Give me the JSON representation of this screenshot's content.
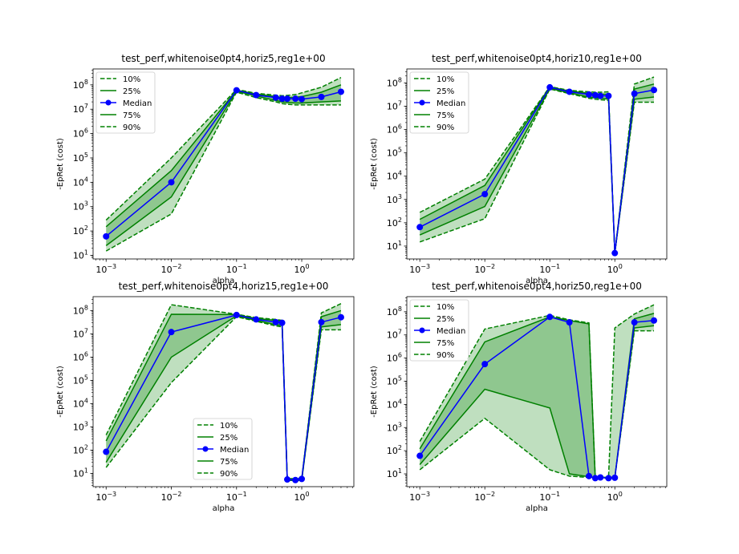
{
  "colors": {
    "band": "#008000",
    "median": "#0000ff",
    "band_outer_alpha": 0.25,
    "band_inner_alpha": 0.25
  },
  "chart_data": [
    {
      "type": "line",
      "title": "test_perf,whitenoise0pt4,horiz5,reg1e+00",
      "xlabel": "alpha",
      "ylabel": "-EpRet (cost)",
      "xscale": "log",
      "yscale": "log",
      "xlim": [
        0.000631,
        6.3
      ],
      "ylim": [
        7.1,
        450000000
      ],
      "x_ticks": [
        0.001,
        0.01,
        0.1,
        1
      ],
      "x_tick_labels": [
        "10^{-3}",
        "10^{-2}",
        "10^{-1}",
        "10^{0}"
      ],
      "y_ticks": [
        10,
        100,
        1000,
        10000,
        100000,
        1000000,
        10000000,
        100000000
      ],
      "y_tick_labels": [
        "10^{1}",
        "10^{2}",
        "10^{3}",
        "10^{4}",
        "10^{5}",
        "10^{6}",
        "10^{7}",
        "10^{8}"
      ],
      "grid": false,
      "legend_position": "upper-left",
      "legend": [
        "10%",
        "25%",
        "Median",
        "75%",
        "90%"
      ],
      "x": [
        0.001,
        0.01,
        0.1,
        0.2,
        0.4,
        0.5,
        0.6,
        0.8,
        1.0,
        2.0,
        4.0
      ],
      "series": [
        {
          "name": "10%",
          "style": "dashed",
          "values": [
            15,
            500,
            50000000,
            30000000,
            20000000,
            17000000,
            16000000,
            15000000,
            15000000,
            15000000,
            15000000
          ]
        },
        {
          "name": "25%",
          "style": "solid",
          "values": [
            25,
            2500,
            55000000,
            35000000,
            23000000,
            20000000,
            19000000,
            18000000,
            18000000,
            20000000,
            22000000
          ]
        },
        {
          "name": "Median",
          "style": "marker",
          "values": [
            60,
            10000,
            60000000,
            38000000,
            30000000,
            27000000,
            27000000,
            27000000,
            26000000,
            32000000,
            52000000
          ]
        },
        {
          "name": "75%",
          "style": "solid",
          "values": [
            150,
            30000,
            60000000,
            42000000,
            33000000,
            30000000,
            30000000,
            31000000,
            33000000,
            50000000,
            100000000
          ]
        },
        {
          "name": "90%",
          "style": "dashed",
          "values": [
            280,
            100000,
            65000000,
            45000000,
            38000000,
            36000000,
            37000000,
            40000000,
            47000000,
            80000000,
            200000000
          ]
        }
      ]
    },
    {
      "type": "line",
      "title": "test_perf,whitenoise0pt4,horiz10,reg1e+00",
      "xlabel": "alpha",
      "ylabel": "-EpRet (cost)",
      "xscale": "log",
      "yscale": "log",
      "xlim": [
        0.000631,
        6.3
      ],
      "ylim": [
        2.8,
        400000000
      ],
      "x_ticks": [
        0.001,
        0.01,
        0.1,
        1
      ],
      "x_tick_labels": [
        "10^{-3}",
        "10^{-2}",
        "10^{-1}",
        "10^{0}"
      ],
      "y_ticks": [
        10,
        100,
        1000,
        10000,
        100000,
        1000000,
        10000000,
        100000000
      ],
      "y_tick_labels": [
        "10^{1}",
        "10^{2}",
        "10^{3}",
        "10^{4}",
        "10^{5}",
        "10^{6}",
        "10^{7}",
        "10^{8}"
      ],
      "grid": false,
      "legend_position": "upper-left",
      "legend": [
        "10%",
        "25%",
        "Median",
        "75%",
        "90%"
      ],
      "x": [
        0.001,
        0.01,
        0.1,
        0.2,
        0.4,
        0.5,
        0.6,
        0.8,
        1.0,
        2.0,
        4.0
      ],
      "series": [
        {
          "name": "10%",
          "style": "dashed",
          "values": [
            15,
            150,
            55000000,
            35000000,
            22000000,
            20000000,
            19000000,
            18000000,
            5,
            15000000,
            15000000
          ]
        },
        {
          "name": "25%",
          "style": "solid",
          "values": [
            30,
            500,
            58000000,
            38000000,
            25000000,
            23000000,
            22000000,
            21000000,
            5,
            20000000,
            25000000
          ]
        },
        {
          "name": "Median",
          "style": "marker",
          "values": [
            65,
            1700,
            65000000,
            42000000,
            32000000,
            30000000,
            28000000,
            28000000,
            5,
            35000000,
            50000000
          ]
        },
        {
          "name": "75%",
          "style": "solid",
          "values": [
            140,
            4000,
            68000000,
            45000000,
            36000000,
            34000000,
            33000000,
            33000000,
            5,
            55000000,
            90000000
          ]
        },
        {
          "name": "90%",
          "style": "dashed",
          "values": [
            280,
            7500,
            70000000,
            48000000,
            42000000,
            40000000,
            40000000,
            42000000,
            5,
            90000000,
            180000000
          ]
        }
      ]
    },
    {
      "type": "line",
      "title": "test_perf,whitenoise0pt4,horiz15,reg1e+00",
      "xlabel": "alpha",
      "ylabel": "-EpRet (cost)",
      "xscale": "log",
      "yscale": "log",
      "xlim": [
        0.000631,
        6.3
      ],
      "ylim": [
        2.7,
        400000000
      ],
      "x_ticks": [
        0.001,
        0.01,
        0.1,
        1
      ],
      "x_tick_labels": [
        "10^{-3}",
        "10^{-2}",
        "10^{-1}",
        "10^{0}"
      ],
      "y_ticks": [
        10,
        100,
        1000,
        10000,
        100000,
        1000000,
        10000000,
        100000000
      ],
      "y_tick_labels": [
        "10^{1}",
        "10^{2}",
        "10^{3}",
        "10^{4}",
        "10^{5}",
        "10^{6}",
        "10^{7}",
        "10^{8}"
      ],
      "grid": false,
      "legend_position": "lower-center",
      "legend": [
        "10%",
        "25%",
        "Median",
        "75%",
        "90%"
      ],
      "x": [
        0.001,
        0.01,
        0.1,
        0.2,
        0.4,
        0.5,
        0.6,
        0.8,
        1.0,
        2.0,
        4.0
      ],
      "series": [
        {
          "name": "10%",
          "style": "dashed",
          "values": [
            18,
            80000,
            55000000,
            35000000,
            22000000,
            20000000,
            5,
            5,
            5,
            15000000,
            15000000
          ]
        },
        {
          "name": "25%",
          "style": "solid",
          "values": [
            30,
            1000000,
            60000000,
            38000000,
            25000000,
            23000000,
            5,
            5,
            5,
            20000000,
            25000000
          ]
        },
        {
          "name": "Median",
          "style": "marker",
          "values": [
            85,
            12000000,
            65000000,
            42000000,
            32000000,
            30000000,
            5.5,
            5.2,
            5.8,
            32000000,
            52000000
          ]
        },
        {
          "name": "75%",
          "style": "solid",
          "values": [
            250,
            70000000,
            68000000,
            46000000,
            38000000,
            34000000,
            6,
            5.5,
            6,
            55000000,
            100000000
          ]
        },
        {
          "name": "90%",
          "style": "dashed",
          "values": [
            450,
            180000000,
            70000000,
            50000000,
            42000000,
            38000000,
            6,
            6,
            6,
            80000000,
            200000000
          ]
        }
      ]
    },
    {
      "type": "line",
      "title": "test_perf,whitenoise0pt4,horiz50,reg1e+00",
      "xlabel": "alpha",
      "ylabel": "-EpRet (cost)",
      "xscale": "log",
      "yscale": "log",
      "xlim": [
        0.000631,
        6.3
      ],
      "ylim": [
        2.8,
        450000000
      ],
      "x_ticks": [
        0.001,
        0.01,
        0.1,
        1
      ],
      "x_tick_labels": [
        "10^{-3}",
        "10^{-2}",
        "10^{-1}",
        "10^{0}"
      ],
      "y_ticks": [
        10,
        100,
        1000,
        10000,
        100000,
        1000000,
        10000000,
        100000000
      ],
      "y_tick_labels": [
        "10^{1}",
        "10^{2}",
        "10^{3}",
        "10^{4}",
        "10^{5}",
        "10^{6}",
        "10^{7}",
        "10^{8}"
      ],
      "grid": false,
      "legend_position": "upper-left",
      "legend": [
        "10%",
        "25%",
        "Median",
        "75%",
        "90%"
      ],
      "x": [
        0.001,
        0.01,
        0.1,
        0.2,
        0.4,
        0.5,
        0.6,
        0.8,
        1.0,
        2.0,
        4.0
      ],
      "series": [
        {
          "name": "10%",
          "style": "dashed",
          "values": [
            15,
            2500,
            15,
            8,
            7,
            6.5,
            6.5,
            6.5,
            6.5,
            15000000,
            15000000
          ]
        },
        {
          "name": "25%",
          "style": "solid",
          "values": [
            25,
            45000,
            7000,
            10,
            7.5,
            7,
            7,
            7,
            7,
            20000000,
            25000000
          ]
        },
        {
          "name": "Median",
          "style": "marker",
          "values": [
            60,
            550000,
            60000000,
            35000000,
            8,
            6.5,
            7,
            6.5,
            6.8,
            35000000,
            42000000
          ]
        },
        {
          "name": "75%",
          "style": "solid",
          "values": [
            120,
            5000000,
            60000000,
            42000000,
            30000000,
            7,
            7,
            7,
            7,
            50000000,
            85000000
          ]
        },
        {
          "name": "90%",
          "style": "dashed",
          "values": [
            250,
            18000000,
            70000000,
            45000000,
            33000000,
            7,
            7,
            7,
            20000000,
            80000000,
            200000000
          ]
        }
      ]
    }
  ]
}
